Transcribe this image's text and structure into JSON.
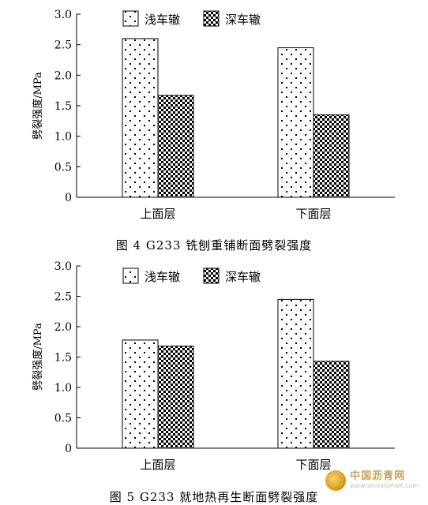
{
  "legend": {
    "shallow": "浅车辙",
    "deep": "深车辙"
  },
  "ylabel": "劈裂强度/MPa",
  "watermark": {
    "name": "中国沥青网",
    "url": "www.sinoasphalt.com"
  },
  "chart_data": [
    {
      "type": "bar",
      "caption": "图 4 G233 铣刨重铺断面劈裂强度",
      "categories": [
        "上面层",
        "下面层"
      ],
      "series": [
        {
          "name": "浅车辙",
          "values": [
            2.6,
            2.45
          ]
        },
        {
          "name": "深车辙",
          "values": [
            1.67,
            1.35
          ]
        }
      ],
      "ylabel": "劈裂强度/MPa",
      "ylim": [
        0,
        3.0
      ],
      "yticks": [
        "0",
        "0.5",
        "1.0",
        "1.5",
        "2.0",
        "2.5",
        "3.0"
      ],
      "legend": "top-center"
    },
    {
      "type": "bar",
      "caption": "图 5 G233 就地热再生断面劈裂强度",
      "categories": [
        "上面层",
        "下面层"
      ],
      "series": [
        {
          "name": "浅车辙",
          "values": [
            1.78,
            2.45
          ]
        },
        {
          "name": "深车辙",
          "values": [
            1.68,
            1.43
          ]
        }
      ],
      "ylabel": "劈裂强度/MPa",
      "ylim": [
        0,
        3.0
      ],
      "yticks": [
        "0",
        "0.5",
        "1.0",
        "1.5",
        "2.0",
        "2.5",
        "3.0"
      ],
      "legend": "top-center"
    }
  ]
}
